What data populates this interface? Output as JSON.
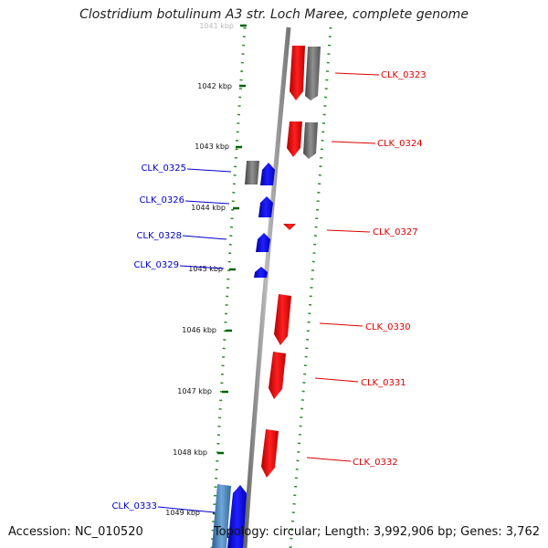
{
  "title": "Clostridium botulinum A3 str. Loch Maree, complete genome",
  "footer": {
    "accession": "Accession: NC_010520",
    "topology": "Topology: circular; Length: 3,992,906 bp; Genes: 3,762"
  },
  "scale_labels": [
    "1041 kbp",
    "1042 kbp",
    "1043 kbp",
    "1044 kbp",
    "1045 kbp",
    "1046 kbp",
    "1047 kbp",
    "1048 kbp",
    "1049 kbp"
  ],
  "genes": [
    {
      "id": "CLK_0323",
      "strand": "forward",
      "color": "#ff0000"
    },
    {
      "id": "CLK_0324",
      "strand": "forward",
      "color": "#ff0000"
    },
    {
      "id": "CLK_0325",
      "strand": "reverse",
      "color": "#0000ff"
    },
    {
      "id": "CLK_0326",
      "strand": "reverse",
      "color": "#0000ff"
    },
    {
      "id": "CLK_0327",
      "strand": "forward",
      "color": "#ff0000"
    },
    {
      "id": "CLK_0328",
      "strand": "reverse",
      "color": "#0000ff"
    },
    {
      "id": "CLK_0329",
      "strand": "reverse",
      "color": "#0000ff"
    },
    {
      "id": "CLK_0330",
      "strand": "forward",
      "color": "#ff0000"
    },
    {
      "id": "CLK_0331",
      "strand": "forward",
      "color": "#ff0000"
    },
    {
      "id": "CLK_0332",
      "strand": "forward",
      "color": "#ff0000"
    },
    {
      "id": "CLK_0333",
      "strand": "reverse",
      "color": "#0000ff"
    }
  ],
  "colors": {
    "forward": "#ff0000",
    "reverse": "#0000ff",
    "neutral": "#6d6d6d",
    "tick": "#006400",
    "backbone": "#888888"
  }
}
